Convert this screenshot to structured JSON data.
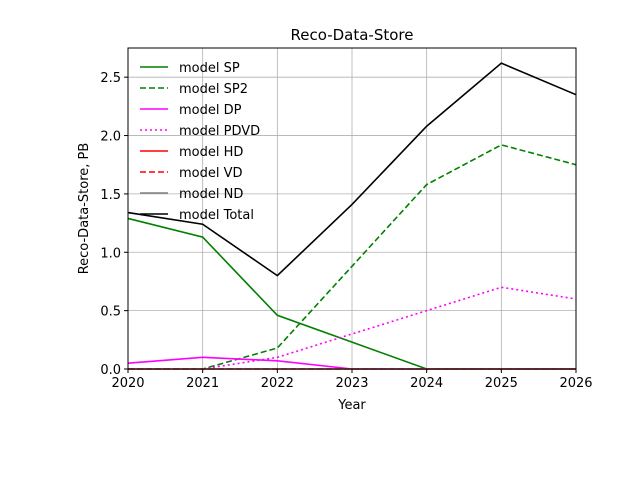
{
  "chart_data": {
    "type": "line",
    "title": "Reco-Data-Store",
    "xlabel": "Year",
    "ylabel": "Reco-Data-Store, PB",
    "xlim": [
      2020,
      2026
    ],
    "ylim": [
      0,
      2.75
    ],
    "x": [
      2020,
      2021,
      2022,
      2023,
      2024,
      2025,
      2026
    ],
    "x_ticks": [
      "2020",
      "2021",
      "2022",
      "2023",
      "2024",
      "2025",
      "2026"
    ],
    "y_ticks": [
      0.0,
      0.5,
      1.0,
      1.5,
      2.0,
      2.5
    ],
    "y_tick_labels": [
      "0.0",
      "0.5",
      "1.0",
      "1.5",
      "2.0",
      "2.5"
    ],
    "grid": true,
    "legend_position": "top-left",
    "series": [
      {
        "name": "model SP",
        "color": "#008000",
        "dash": "solid",
        "values": [
          1.29,
          1.13,
          0.46,
          0.23,
          0.0,
          0.0,
          0.0
        ]
      },
      {
        "name": "model SP2",
        "color": "#008000",
        "dash": "dashed",
        "values": [
          0.0,
          0.0,
          0.18,
          0.88,
          1.58,
          1.92,
          1.75
        ]
      },
      {
        "name": "model DP",
        "color": "#ff00ff",
        "dash": "solid",
        "values": [
          0.05,
          0.1,
          0.07,
          0.0,
          0.0,
          0.0,
          0.0
        ]
      },
      {
        "name": "model PDVD",
        "color": "#ff00ff",
        "dash": "dotted",
        "values": [
          0.0,
          0.0,
          0.1,
          0.3,
          0.5,
          0.7,
          0.6
        ]
      },
      {
        "name": "model HD",
        "color": "#ff0000",
        "dash": "solid",
        "values": [
          0.0,
          0.0,
          0.0,
          0.0,
          0.0,
          0.0,
          0.0
        ]
      },
      {
        "name": "model VD",
        "color": "#ff0000",
        "dash": "dashed",
        "values": [
          0.0,
          0.0,
          0.0,
          0.0,
          0.0,
          0.0,
          0.0
        ]
      },
      {
        "name": "model ND",
        "color": "#808080",
        "dash": "solid",
        "values": [
          0.0,
          0.0,
          0.0,
          0.0,
          0.0,
          0.0,
          0.0
        ]
      },
      {
        "name": "model Total",
        "color": "#000000",
        "dash": "solid",
        "values": [
          1.34,
          1.24,
          0.8,
          1.41,
          2.08,
          2.62,
          2.35
        ]
      }
    ]
  }
}
